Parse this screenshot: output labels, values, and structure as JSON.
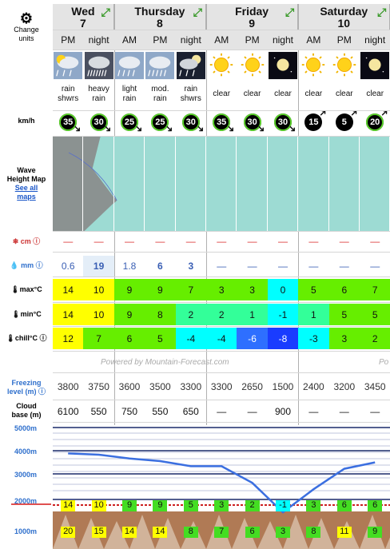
{
  "units_button": {
    "label_line1": "Change",
    "label_line2": "units"
  },
  "labels": {
    "wind": "km/h",
    "wave_map_1": "Wave",
    "wave_map_2": "Height Map",
    "see_all_maps_1": "See all",
    "see_all_maps_2": "maps",
    "snow": "cm",
    "rain": "mm",
    "max_temp": "max°C",
    "min_temp": "min°C",
    "chill": "chill°C",
    "freezing_1": "Freezing",
    "freezing_2": "level (m)",
    "cloud_1": "Cloud",
    "cloud_2": "base (m)",
    "alt_5000": "5000m",
    "alt_4000": "4000m",
    "alt_3000": "3000m",
    "alt_2000": "2000m",
    "alt_1000": "1000m"
  },
  "days": [
    {
      "name": "Wed",
      "num": "7"
    },
    {
      "name": "Thursday",
      "num": "8"
    },
    {
      "name": "Friday",
      "num": "9"
    },
    {
      "name": "Saturday",
      "num": "10"
    }
  ],
  "periods": [
    "PM",
    "night",
    "AM",
    "PM",
    "night",
    "AM",
    "PM",
    "night",
    "AM",
    "PM",
    "night"
  ],
  "weather_icons": [
    "rain-showers-icon",
    "heavy-rain-icon",
    "light-rain-icon",
    "moderate-rain-icon",
    "rain-showers-night-icon",
    "sun-icon",
    "sun-icon",
    "clear-night-icon",
    "sun-icon",
    "sun-icon",
    "clear-night-icon"
  ],
  "descriptions": [
    [
      "rain",
      "shwrs"
    ],
    [
      "heavy",
      "rain"
    ],
    [
      "light",
      "rain"
    ],
    [
      "mod.",
      "rain"
    ],
    [
      "rain",
      "shwrs"
    ],
    [
      "clear",
      ""
    ],
    [
      "clear",
      ""
    ],
    [
      "clear",
      ""
    ],
    [
      "clear",
      ""
    ],
    [
      "clear",
      ""
    ],
    [
      "clear",
      ""
    ]
  ],
  "wind": [
    "35",
    "30",
    "25",
    "25",
    "30",
    "35",
    "30",
    "30",
    "15",
    "5",
    "20"
  ],
  "snow": [
    "—",
    "—",
    "—",
    "—",
    "—",
    "—",
    "—",
    "—",
    "—",
    "—",
    "—"
  ],
  "rain": [
    "0.6",
    "19",
    "1.8",
    "6",
    "3",
    "—",
    "—",
    "—",
    "—",
    "—",
    "—"
  ],
  "max_temp": [
    "14",
    "10",
    "9",
    "9",
    "7",
    "3",
    "3",
    "0",
    "5",
    "6",
    "7"
  ],
  "min_temp": [
    "14",
    "10",
    "9",
    "8",
    "2",
    "2",
    "1",
    "-1",
    "1",
    "5",
    "5"
  ],
  "chill": [
    "12",
    "7",
    "6",
    "5",
    "-4",
    "-4",
    "-6",
    "-8",
    "-3",
    "3",
    "2"
  ],
  "powered_by": "Powered by Mountain-Forecast.com",
  "powered_by_partial": "Po",
  "freezing_level": [
    "3800",
    "3750",
    "3600",
    "3500",
    "3300",
    "3300",
    "2650",
    "1500",
    "2400",
    "3200",
    "3450"
  ],
  "cloud_base": [
    "6100",
    "550",
    "750",
    "550",
    "650",
    "—",
    "—",
    "900",
    "—",
    "—",
    "—"
  ],
  "chart_2000": [
    "14",
    "10",
    "9",
    "9",
    "5",
    "3",
    "2",
    "-1",
    "3",
    "6",
    "6"
  ],
  "chart_1000": [
    "20",
    "15",
    "14",
    "14",
    "8",
    "7",
    "6",
    "3",
    "8",
    "11",
    "9"
  ],
  "colors": {
    "yellow": "#ffff00",
    "green": "#66ee00",
    "lightgreen": "#33ff99",
    "cyan": "#00ffff",
    "blue": "#2e6fff",
    "darkblue": "#1a3cff",
    "chartbg": "#142850",
    "line": "#3b6fe0"
  }
}
